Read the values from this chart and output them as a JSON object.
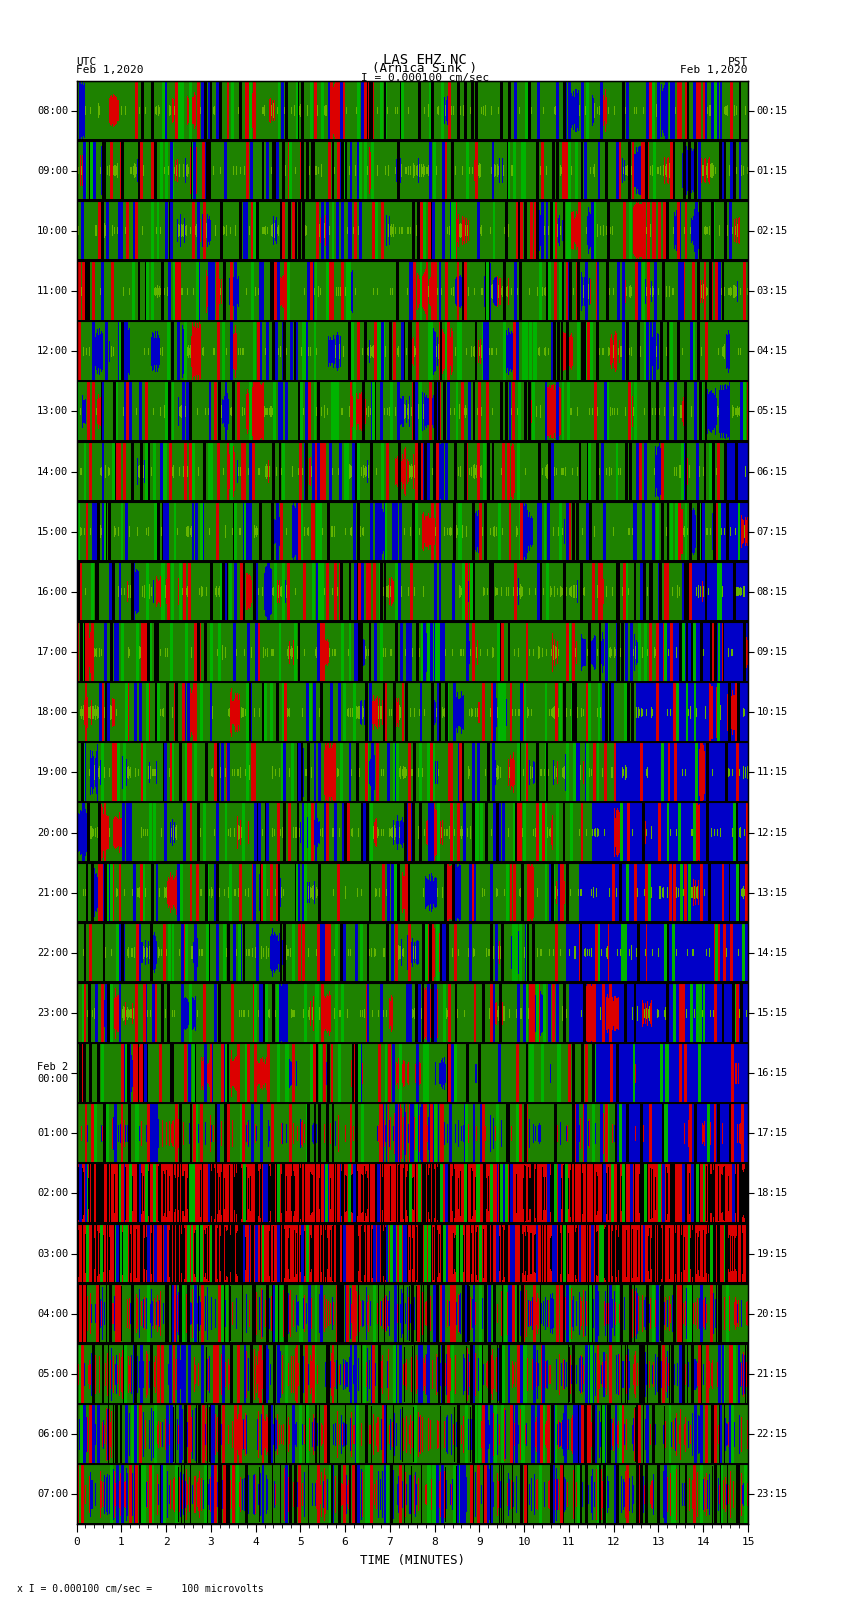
{
  "title_line1": "LAS EHZ NC",
  "title_line2": "(Arnica Sink )",
  "scale_label": "I = 0.000100 cm/sec",
  "bottom_label": "x I = 0.000100 cm/sec =     100 microvolts",
  "left_header_1": "UTC",
  "left_header_2": "Feb 1,2020",
  "right_header_1": "PST",
  "right_header_2": "Feb 1,2020",
  "xlabel": "TIME (MINUTES)",
  "xlim": [
    0,
    15
  ],
  "xticks": [
    0,
    1,
    2,
    3,
    4,
    5,
    6,
    7,
    8,
    9,
    10,
    11,
    12,
    13,
    14,
    15
  ],
  "left_ytick_labels": [
    "08:00",
    "09:00",
    "10:00",
    "11:00",
    "12:00",
    "13:00",
    "14:00",
    "15:00",
    "16:00",
    "17:00",
    "18:00",
    "19:00",
    "20:00",
    "21:00",
    "22:00",
    "23:00",
    "Feb 2\n00:00",
    "01:00",
    "02:00",
    "03:00",
    "04:00",
    "05:00",
    "06:00",
    "07:00"
  ],
  "right_ytick_labels": [
    "00:15",
    "01:15",
    "02:15",
    "03:15",
    "04:15",
    "05:15",
    "06:15",
    "07:15",
    "08:15",
    "09:15",
    "10:15",
    "11:15",
    "12:15",
    "13:15",
    "14:15",
    "15:15",
    "16:15",
    "17:15",
    "18:15",
    "19:15",
    "20:15",
    "21:15",
    "22:15",
    "23:15"
  ],
  "n_rows": 24,
  "fig_bg": "#ffffff",
  "green_bg": "#1a7a00",
  "blue_bg": "#0000cc",
  "red_bg": "#cc0000"
}
